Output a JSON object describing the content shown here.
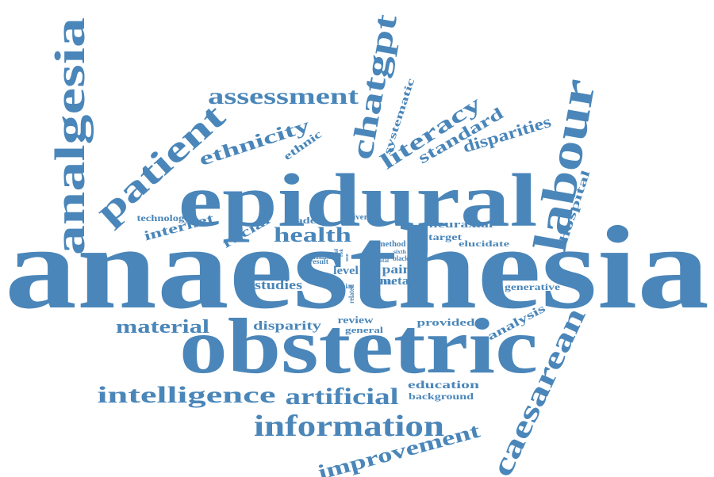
{
  "word_cloud": {
    "color": "#4a86b9",
    "words": [
      {
        "text": "anaesthesia"
      },
      {
        "text": "obstetric"
      },
      {
        "text": "epidural"
      },
      {
        "text": "labour"
      },
      {
        "text": "analgesia"
      },
      {
        "text": "patient"
      },
      {
        "text": "chatgpt"
      },
      {
        "text": "caesarean"
      },
      {
        "text": "information"
      },
      {
        "text": "intelligence"
      },
      {
        "text": "artificial"
      },
      {
        "text": "assessment"
      },
      {
        "text": "improvement"
      },
      {
        "text": "literacy"
      },
      {
        "text": "ethnicity"
      },
      {
        "text": "health"
      },
      {
        "text": "material"
      },
      {
        "text": "standard"
      },
      {
        "text": "disparities"
      },
      {
        "text": "hospital"
      },
      {
        "text": "internet"
      },
      {
        "text": "racial"
      },
      {
        "text": "studies"
      },
      {
        "text": "disparity"
      },
      {
        "text": "analysis"
      },
      {
        "text": "systematic"
      },
      {
        "text": "ethnic"
      },
      {
        "text": "education"
      },
      {
        "text": "background"
      },
      {
        "text": "neuraxial"
      },
      {
        "text": "target"
      },
      {
        "text": "elucidate"
      },
      {
        "text": "generative"
      },
      {
        "text": "provided"
      },
      {
        "text": "review"
      },
      {
        "text": "general"
      },
      {
        "text": "pain"
      },
      {
        "text": "meta"
      },
      {
        "text": "level"
      },
      {
        "text": "grade"
      },
      {
        "text": "technology"
      },
      {
        "text": "delivery"
      },
      {
        "text": "method"
      },
      {
        "text": "black"
      },
      {
        "text": "sixth"
      },
      {
        "text": "total"
      },
      {
        "text": "white"
      },
      {
        "text": "bias"
      },
      {
        "text": "result"
      },
      {
        "text": "related"
      },
      {
        "text": "data"
      },
      {
        "text": "ratio"
      },
      {
        "text": "tool"
      },
      {
        "text": "risk"
      },
      {
        "text": "use"
      }
    ]
  }
}
